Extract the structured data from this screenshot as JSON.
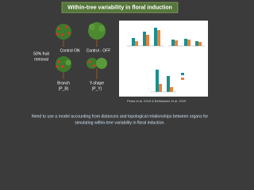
{
  "header": {
    "title": "Within-tree variability in floral induction"
  },
  "figure": {
    "trees": [
      {
        "label": "Control ON"
      },
      {
        "label": "Control - OFF"
      },
      {
        "label": "Branch",
        "code": "(P_B)"
      },
      {
        "label": "Y-shape",
        "code": "(P_Y)"
      }
    ],
    "treatment_label": [
      "50% fruit",
      "removal"
    ],
    "citation": "Pelea et al. 2018 & Belhassine et al. 2019"
  },
  "footer": {
    "lines": [
      "Need to use a model accounting from distances and topological relationships between organs for",
      "simulating within-tree variability in floral induction."
    ]
  }
}
